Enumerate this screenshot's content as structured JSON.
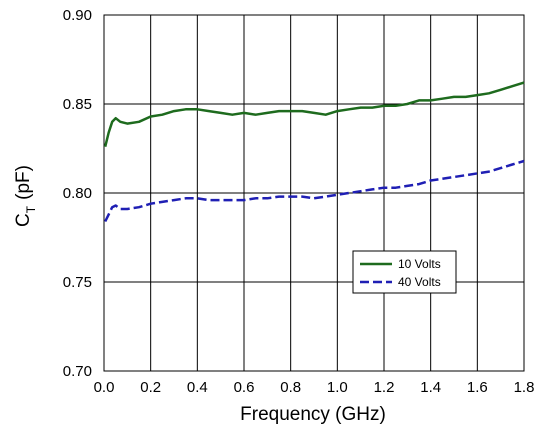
{
  "chart_data": {
    "type": "line",
    "xlabel": "Frequency (GHz)",
    "ylabel_main": "C",
    "ylabel_sub": "T",
    "ylabel_unit": "(pF)",
    "xlim": [
      0.0,
      1.8
    ],
    "ylim": [
      0.7,
      0.9
    ],
    "x_ticks": [
      0.0,
      0.2,
      0.4,
      0.6,
      0.8,
      1.0,
      1.2,
      1.4,
      1.6,
      1.8
    ],
    "x_tick_labels": [
      "0.0",
      "0.2",
      "0.4",
      "0.6",
      "0.8",
      "1.0",
      "1.2",
      "1.4",
      "1.6",
      "1.8"
    ],
    "y_ticks": [
      0.7,
      0.75,
      0.8,
      0.85,
      0.9
    ],
    "y_tick_labels": [
      "0.70",
      "0.75",
      "0.80",
      "0.85",
      "0.90"
    ],
    "grid": true,
    "legend_position": "inside-right",
    "series": [
      {
        "name": "10 Volts",
        "color": "#1e6b1e",
        "dash": "solid",
        "points": [
          [
            0.005,
            0.826
          ],
          [
            0.02,
            0.834
          ],
          [
            0.035,
            0.84
          ],
          [
            0.05,
            0.842
          ],
          [
            0.07,
            0.84
          ],
          [
            0.1,
            0.839
          ],
          [
            0.15,
            0.84
          ],
          [
            0.2,
            0.843
          ],
          [
            0.25,
            0.844
          ],
          [
            0.3,
            0.846
          ],
          [
            0.35,
            0.847
          ],
          [
            0.4,
            0.847
          ],
          [
            0.45,
            0.846
          ],
          [
            0.5,
            0.845
          ],
          [
            0.55,
            0.844
          ],
          [
            0.6,
            0.845
          ],
          [
            0.65,
            0.844
          ],
          [
            0.7,
            0.845
          ],
          [
            0.75,
            0.846
          ],
          [
            0.8,
            0.846
          ],
          [
            0.85,
            0.846
          ],
          [
            0.9,
            0.845
          ],
          [
            0.95,
            0.844
          ],
          [
            1.0,
            0.846
          ],
          [
            1.05,
            0.847
          ],
          [
            1.1,
            0.848
          ],
          [
            1.15,
            0.848
          ],
          [
            1.2,
            0.849
          ],
          [
            1.25,
            0.849
          ],
          [
            1.3,
            0.85
          ],
          [
            1.35,
            0.852
          ],
          [
            1.4,
            0.852
          ],
          [
            1.45,
            0.853
          ],
          [
            1.5,
            0.854
          ],
          [
            1.55,
            0.854
          ],
          [
            1.6,
            0.855
          ],
          [
            1.65,
            0.856
          ],
          [
            1.7,
            0.858
          ],
          [
            1.75,
            0.86
          ],
          [
            1.8,
            0.862
          ]
        ]
      },
      {
        "name": "40 Volts",
        "color": "#1f1fb4",
        "dash": "dashed",
        "points": [
          [
            0.005,
            0.784
          ],
          [
            0.02,
            0.788
          ],
          [
            0.035,
            0.792
          ],
          [
            0.05,
            0.793
          ],
          [
            0.07,
            0.791
          ],
          [
            0.1,
            0.791
          ],
          [
            0.15,
            0.792
          ],
          [
            0.2,
            0.794
          ],
          [
            0.25,
            0.795
          ],
          [
            0.3,
            0.796
          ],
          [
            0.35,
            0.797
          ],
          [
            0.4,
            0.797
          ],
          [
            0.45,
            0.796
          ],
          [
            0.5,
            0.796
          ],
          [
            0.55,
            0.796
          ],
          [
            0.6,
            0.796
          ],
          [
            0.65,
            0.797
          ],
          [
            0.7,
            0.797
          ],
          [
            0.75,
            0.798
          ],
          [
            0.8,
            0.798
          ],
          [
            0.85,
            0.798
          ],
          [
            0.9,
            0.797
          ],
          [
            0.95,
            0.798
          ],
          [
            1.0,
            0.799
          ],
          [
            1.05,
            0.8
          ],
          [
            1.1,
            0.801
          ],
          [
            1.15,
            0.802
          ],
          [
            1.2,
            0.803
          ],
          [
            1.25,
            0.803
          ],
          [
            1.3,
            0.804
          ],
          [
            1.35,
            0.805
          ],
          [
            1.4,
            0.807
          ],
          [
            1.45,
            0.808
          ],
          [
            1.5,
            0.809
          ],
          [
            1.55,
            0.81
          ],
          [
            1.6,
            0.811
          ],
          [
            1.65,
            0.812
          ],
          [
            1.7,
            0.814
          ],
          [
            1.75,
            0.816
          ],
          [
            1.8,
            0.818
          ]
        ]
      }
    ]
  }
}
